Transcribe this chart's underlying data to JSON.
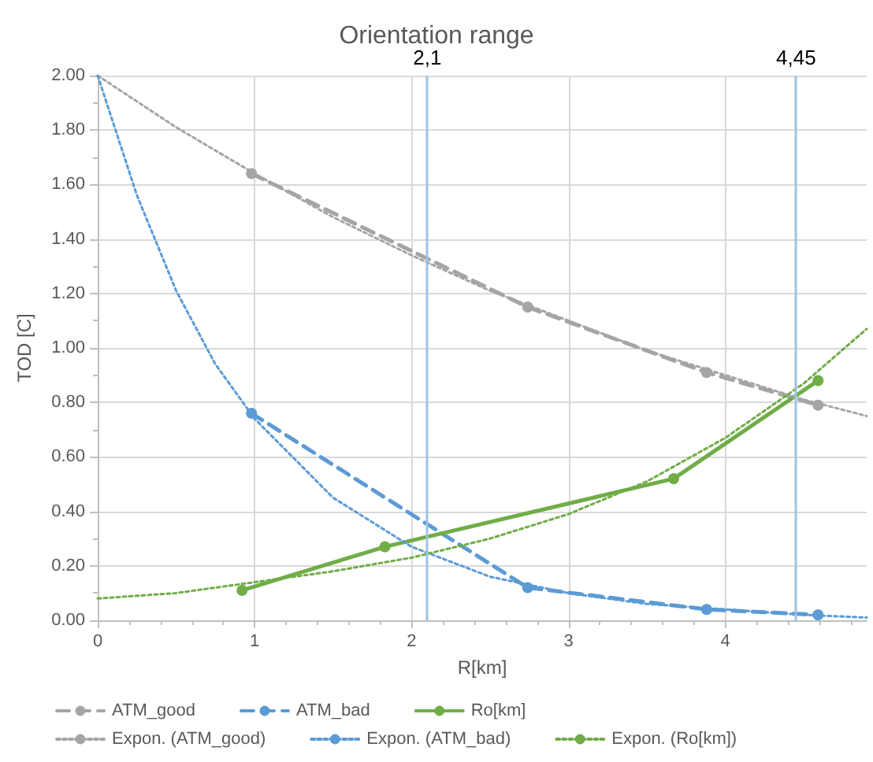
{
  "chart_data": {
    "type": "line",
    "title": "Orientation range",
    "xlabel": "R[km]",
    "ylabel": "TOD [C]",
    "xlim": [
      0,
      4.9
    ],
    "xticks": [
      0,
      1,
      2,
      3,
      4
    ],
    "ylim": [
      0,
      2
    ],
    "yticks": [
      {
        "value": 0,
        "label": "0.00"
      },
      {
        "value": 0.2,
        "label": "0.20"
      },
      {
        "value": 0.4,
        "label": "0.40"
      },
      {
        "value": 0.6,
        "label": "0.60"
      },
      {
        "value": 0.8,
        "label": "0.80"
      },
      {
        "value": 1,
        "label": "1.00"
      },
      {
        "value": 1.2,
        "label": "1.20"
      },
      {
        "value": 1.4,
        "label": "1.40"
      },
      {
        "value": 1.6,
        "label": "1.60"
      },
      {
        "value": 1.8,
        "label": "1.80"
      },
      {
        "value": 2,
        "label": "2.00"
      }
    ],
    "grid": true,
    "legend": "bottom",
    "series": [
      {
        "name": "ATM_good",
        "color": "#a5a5a5",
        "marker": "circle",
        "line_style": "dashed",
        "x": [
          0.98,
          2.74,
          3.88,
          4.59
        ],
        "values": [
          1.64,
          1.15,
          0.91,
          0.79
        ]
      },
      {
        "name": "ATM_bad",
        "color": "#5b9bd5",
        "marker": "circle",
        "line_style": "dashed",
        "x": [
          0.98,
          2.74,
          3.88,
          4.59
        ],
        "values": [
          0.76,
          0.12,
          0.04,
          0.02
        ]
      },
      {
        "name": "Ro[km]",
        "color": "#70ad47",
        "marker": "circle",
        "line_style": "solid",
        "x": [
          0.92,
          1.83,
          3.67,
          4.59
        ],
        "values": [
          0.11,
          0.27,
          0.52,
          0.88
        ]
      },
      {
        "name": "Expon. (ATM_good)",
        "color": "#a5a5a5",
        "marker": "none",
        "line_style": "dotted",
        "x": [
          0,
          0.5,
          1,
          1.5,
          2,
          2.5,
          3,
          3.5,
          4,
          4.5,
          4.9
        ],
        "values": [
          2.0,
          1.81,
          1.64,
          1.48,
          1.34,
          1.21,
          1.1,
          0.99,
          0.9,
          0.81,
          0.75
        ]
      },
      {
        "name": "Expon. (ATM_bad)",
        "color": "#5b9bd5",
        "marker": "none",
        "line_style": "dotted",
        "x": [
          0,
          0.25,
          0.5,
          0.75,
          1,
          1.5,
          2,
          2.5,
          3,
          3.5,
          4,
          4.5,
          4.9
        ],
        "values": [
          2.0,
          1.56,
          1.21,
          0.94,
          0.74,
          0.45,
          0.27,
          0.16,
          0.1,
          0.06,
          0.04,
          0.02,
          0.01
        ]
      },
      {
        "name": "Expon. (Ro[km])",
        "color": "#70ad47",
        "marker": "none",
        "line_style": "dotted",
        "x": [
          0,
          0.5,
          1,
          1.5,
          2,
          2.5,
          3,
          3.5,
          4,
          4.5,
          4.9
        ],
        "values": [
          0.08,
          0.1,
          0.14,
          0.18,
          0.23,
          0.3,
          0.39,
          0.51,
          0.67,
          0.87,
          1.07
        ]
      }
    ],
    "ref_lines": [
      {
        "axis": "x",
        "value": 2.1,
        "label": "2,1",
        "color": "#9dc3e6"
      },
      {
        "axis": "x",
        "value": 4.45,
        "label": "4,45",
        "color": "#9dc3e6"
      }
    ]
  }
}
